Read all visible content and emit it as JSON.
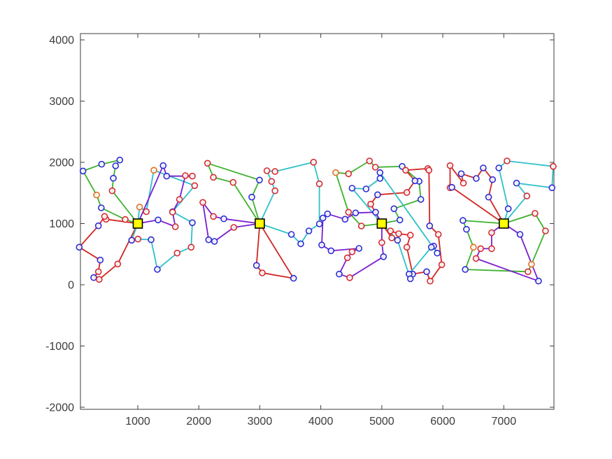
{
  "figure": {
    "background": "#ffffff",
    "title": ""
  },
  "chart_data": {
    "type": "scatter",
    "subtype": "multi-depot-vehicle-routes",
    "title": "",
    "xlabel": "",
    "ylabel": "",
    "grid": false,
    "legend": null,
    "xlim": [
      60,
      7822
    ],
    "ylim": [
      -2034,
      4103
    ],
    "x_ticks": [
      1000,
      2000,
      3000,
      4000,
      5000,
      6000,
      7000
    ],
    "x_tick_labels": [
      "1000",
      "2000",
      "3000",
      "4000",
      "5000",
      "6000",
      "7000"
    ],
    "y_ticks": [
      -2000,
      -1000,
      0,
      1000,
      2000,
      3000,
      4000
    ],
    "y_tick_labels": [
      "-2000",
      "-1000",
      "0",
      "1000",
      "2000",
      "3000",
      "4000"
    ],
    "axis_color": "#3c3c3c",
    "tick_len": 6,
    "colors": {
      "route_red": "#cf2722",
      "route_green": "#3db32e",
      "route_cyan": "#2fc0c9",
      "route_purple": "#7a1fd0",
      "node_blue": "#2b2bd5",
      "node_red": "#d5292f",
      "node_orange": "#e2701f",
      "depot_fill": "#ffff00",
      "depot_edge": "#000000"
    },
    "depots": [
      {
        "x": 1000,
        "y": 1000
      },
      {
        "x": 3000,
        "y": 1000
      },
      {
        "x": 5000,
        "y": 1000
      },
      {
        "x": 7000,
        "y": 1000
      }
    ],
    "routes": [
      {
        "depot": 0,
        "color": "green",
        "points": [
          [
            794,
            1066,
            "r"
          ],
          [
            402,
            1257,
            "b"
          ],
          [
            325,
            1466,
            "o"
          ],
          [
            102,
            1859,
            "b"
          ],
          [
            407,
            1969,
            "b"
          ],
          [
            705,
            2038,
            "b"
          ],
          [
            637,
            1943,
            "b"
          ],
          [
            599,
            1741,
            "b"
          ],
          [
            580,
            1535,
            "r"
          ]
        ]
      },
      {
        "depot": 0,
        "color": "red",
        "points": [
          [
            480,
            1071,
            "r"
          ],
          [
            455,
            1117,
            "r"
          ],
          [
            355,
            964,
            "b"
          ],
          [
            40,
            614,
            "b"
          ],
          [
            384,
            404,
            "b"
          ],
          [
            355,
            214,
            "r"
          ],
          [
            278,
            118,
            "b"
          ],
          [
            367,
            88,
            "r"
          ],
          [
            671,
            340,
            "r"
          ]
        ]
      },
      {
        "depot": 0,
        "color": "cyan",
        "points": [
          [
            900,
            728,
            "b"
          ],
          [
            1003,
            747,
            "r"
          ],
          [
            1218,
            736,
            "b"
          ],
          [
            1321,
            252,
            "b"
          ],
          [
            1646,
            518,
            "r"
          ],
          [
            1875,
            614,
            "r"
          ],
          [
            1894,
            1014,
            "b"
          ],
          [
            1570,
            1193,
            "b"
          ],
          [
            1932,
            1620,
            "r"
          ],
          [
            1264,
            1871,
            "o"
          ],
          [
            1140,
            1195,
            "r"
          ],
          [
            1030,
            1270,
            "o"
          ]
        ]
      },
      {
        "depot": 0,
        "color": "purple",
        "points": [
          [
            1333,
            1060,
            "b"
          ],
          [
            1616,
            949,
            "r"
          ],
          [
            1570,
            1186,
            "r"
          ],
          [
            1684,
            1394,
            "r"
          ],
          [
            1780,
            1783,
            "r"
          ],
          [
            1894,
            1775,
            "r"
          ],
          [
            1474,
            1775,
            "b"
          ],
          [
            1416,
            1947,
            "b"
          ]
        ]
      },
      {
        "depot": 1,
        "color": "green",
        "points": [
          [
            2869,
            1432,
            "b"
          ],
          [
            2995,
            1711,
            "b"
          ],
          [
            2143,
            1985,
            "r"
          ],
          [
            2239,
            1756,
            "r"
          ],
          [
            2563,
            1672,
            "r"
          ]
        ]
      },
      {
        "depot": 1,
        "color": "cyan",
        "points": [
          [
            3250,
            1535,
            "r"
          ],
          [
            3193,
            1688,
            "r"
          ],
          [
            3117,
            1863,
            "r"
          ],
          [
            3250,
            1851,
            "r"
          ],
          [
            3881,
            2003,
            "r"
          ],
          [
            3977,
            1649,
            "r"
          ],
          [
            3977,
            994,
            "b"
          ],
          [
            3805,
            880,
            "b"
          ],
          [
            3671,
            670,
            "b"
          ],
          [
            3518,
            823,
            "b"
          ]
        ]
      },
      {
        "depot": 1,
        "color": "purple",
        "points": [
          [
            2574,
            937,
            "r"
          ],
          [
            2257,
            709,
            "b"
          ],
          [
            2162,
            735,
            "b"
          ],
          [
            2066,
            1345,
            "r"
          ],
          [
            2239,
            1117,
            "r"
          ],
          [
            2410,
            1078,
            "b"
          ]
        ]
      },
      {
        "depot": 1,
        "color": "red",
        "points": [
          [
            2946,
            317,
            "b"
          ],
          [
            3041,
            194,
            "r"
          ],
          [
            3554,
            106,
            "b"
          ]
        ]
      },
      {
        "depot": 2,
        "color": "green",
        "points": [
          [
            4666,
            960,
            "r"
          ],
          [
            4455,
            1185,
            "r"
          ],
          [
            4245,
            1832,
            "o"
          ],
          [
            4455,
            1814,
            "r"
          ],
          [
            4799,
            2023,
            "r"
          ],
          [
            4895,
            1920,
            "r"
          ],
          [
            5334,
            1934,
            "b"
          ],
          [
            5611,
            1690,
            "b"
          ],
          [
            5640,
            1394,
            "b"
          ],
          [
            5200,
            1243,
            "b"
          ],
          [
            5296,
            1059,
            "b"
          ]
        ]
      },
      {
        "depot": 2,
        "color": "red",
        "points": [
          [
            4818,
            1318,
            "r"
          ],
          [
            4932,
            1471,
            "b"
          ],
          [
            5411,
            1508,
            "r"
          ],
          [
            5544,
            1699,
            "b"
          ],
          [
            5391,
            1871,
            "r"
          ],
          [
            5754,
            1898,
            "r"
          ],
          [
            5773,
            1871,
            "r"
          ],
          [
            5785,
            963,
            "b"
          ],
          [
            5927,
            823,
            "r"
          ],
          [
            5983,
            328,
            "r"
          ],
          [
            5793,
            61,
            "r"
          ],
          [
            5735,
            214,
            "b"
          ],
          [
            5506,
            175,
            "b"
          ],
          [
            5411,
            614,
            "r"
          ],
          [
            5468,
            811,
            "r"
          ],
          [
            5277,
            834,
            "r"
          ],
          [
            5143,
            880,
            "r"
          ],
          [
            5163,
            766,
            "r"
          ]
        ]
      },
      {
        "depot": 2,
        "color": "cyan",
        "points": [
          [
            4513,
            1577,
            "b"
          ],
          [
            4742,
            1566,
            "b"
          ],
          [
            4971,
            1737,
            "b"
          ],
          [
            4971,
            1832,
            "b"
          ],
          [
            5908,
            518,
            "b"
          ],
          [
            5850,
            632,
            "b"
          ],
          [
            5812,
            614,
            "b"
          ],
          [
            5448,
            175,
            "b"
          ],
          [
            5468,
            99,
            "b"
          ],
          [
            5258,
            728,
            "b"
          ]
        ]
      },
      {
        "depot": 2,
        "color": "purple",
        "points": [
          [
            4898,
            1185,
            "b"
          ],
          [
            4571,
            1174,
            "b"
          ],
          [
            4398,
            1071,
            "b"
          ],
          [
            4111,
            1158,
            "b"
          ],
          [
            4035,
            1090,
            "b"
          ],
          [
            4015,
            651,
            "b"
          ],
          [
            4168,
            556,
            "b"
          ],
          [
            4627,
            594,
            "b"
          ],
          [
            4513,
            540,
            "r"
          ],
          [
            4436,
            441,
            "r"
          ],
          [
            4302,
            175,
            "b"
          ],
          [
            4474,
            117,
            "r"
          ],
          [
            5028,
            460,
            "b"
          ],
          [
            5000,
            689,
            "r"
          ]
        ]
      },
      {
        "depot": 3,
        "color": "red",
        "points": [
          [
            6751,
            1432,
            "b"
          ],
          [
            6815,
            1718,
            "b"
          ],
          [
            6663,
            1909,
            "b"
          ],
          [
            6548,
            1737,
            "b"
          ],
          [
            6303,
            1814,
            "b"
          ],
          [
            6337,
            1661,
            "r"
          ],
          [
            6119,
            1947,
            "r"
          ],
          [
            6119,
            1585,
            "r"
          ],
          [
            6149,
            1592,
            "b"
          ]
        ]
      },
      {
        "depot": 3,
        "color": "cyan",
        "points": [
          [
            7073,
            1243,
            "b"
          ],
          [
            6919,
            1909,
            "b"
          ],
          [
            7053,
            2023,
            "r"
          ],
          [
            7810,
            1934,
            "r"
          ],
          [
            7790,
            1585,
            "b"
          ],
          [
            7209,
            1661,
            "b"
          ],
          [
            7378,
            1451,
            "r"
          ]
        ]
      },
      {
        "depot": 3,
        "color": "green",
        "points": [
          [
            6330,
            1051,
            "b"
          ],
          [
            6388,
            906,
            "b"
          ],
          [
            6502,
            614,
            "o"
          ],
          [
            6368,
            251,
            "b"
          ],
          [
            7397,
            214,
            "r"
          ],
          [
            7454,
            335,
            "o"
          ],
          [
            7683,
            880,
            "r"
          ],
          [
            7511,
            1166,
            "r"
          ]
        ]
      },
      {
        "depot": 3,
        "color": "purple",
        "points": [
          [
            6800,
            852,
            "r"
          ],
          [
            6800,
            590,
            "r"
          ],
          [
            6620,
            590,
            "r"
          ],
          [
            6545,
            430,
            "r"
          ],
          [
            7569,
            61,
            "b"
          ],
          [
            7266,
            823,
            "b"
          ]
        ]
      }
    ]
  }
}
